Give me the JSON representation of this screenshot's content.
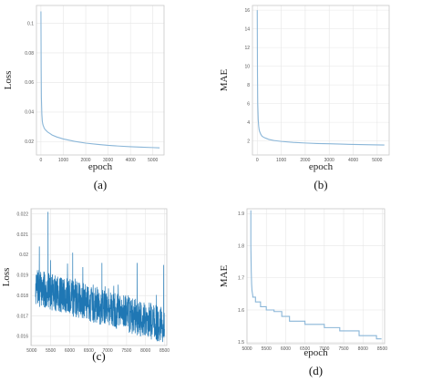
{
  "chart_data": [
    {
      "type": "line",
      "panel": "(a)",
      "title": "",
      "xlabel": "epoch",
      "ylabel": "Loss",
      "xlim": [
        -200,
        5500
      ],
      "ylim": [
        0.011,
        0.112
      ],
      "xticks": [
        "0",
        "1000",
        "2000",
        "3000",
        "4000",
        "5000"
      ],
      "xtick_values": [
        0,
        1000,
        2000,
        3000,
        4000,
        5000
      ],
      "yticks": [
        "0.02",
        "0.04",
        "0.06",
        "0.08",
        "0.1"
      ],
      "ytick_values": [
        0.02,
        0.04,
        0.06,
        0.08,
        0.1
      ],
      "grid": true,
      "color": "#8ab6d8",
      "series": [
        {
          "x": [
            0,
            10,
            20,
            40,
            60,
            80,
            100,
            150,
            200,
            300,
            400,
            500,
            700,
            1000,
            1500,
            2000,
            2500,
            3000,
            3500,
            4000,
            4500,
            5000,
            5300
          ],
          "y": [
            0.108,
            0.07,
            0.05,
            0.039,
            0.034,
            0.032,
            0.031,
            0.029,
            0.028,
            0.0265,
            0.0255,
            0.0245,
            0.0232,
            0.0218,
            0.0202,
            0.019,
            0.0182,
            0.0175,
            0.017,
            0.0166,
            0.0163,
            0.016,
            0.0158
          ]
        }
      ]
    },
    {
      "type": "line",
      "panel": "(b)",
      "title": "",
      "xlabel": "epoch",
      "ylabel": "MAE",
      "xlim": [
        -200,
        5500
      ],
      "ylim": [
        0.5,
        16.5
      ],
      "xticks": [
        "0",
        "1000",
        "2000",
        "3000",
        "4000",
        "5000"
      ],
      "xtick_values": [
        0,
        1000,
        2000,
        3000,
        4000,
        5000
      ],
      "yticks": [
        "2",
        "4",
        "6",
        "8",
        "10",
        "12",
        "14",
        "16"
      ],
      "ytick_values": [
        2,
        4,
        6,
        8,
        10,
        12,
        14,
        16
      ],
      "grid": true,
      "color": "#8ab6d8",
      "series": [
        {
          "x": [
            0,
            10,
            20,
            40,
            60,
            80,
            100,
            150,
            200,
            300,
            400,
            500,
            700,
            1000,
            1500,
            2000,
            2500,
            3000,
            3500,
            4000,
            4500,
            5000,
            5300
          ],
          "y": [
            16.0,
            9.0,
            6.0,
            4.3,
            3.6,
            3.2,
            3.0,
            2.7,
            2.5,
            2.35,
            2.25,
            2.15,
            2.05,
            1.95,
            1.85,
            1.78,
            1.73,
            1.7,
            1.66,
            1.63,
            1.6,
            1.58,
            1.57
          ]
        }
      ]
    },
    {
      "type": "line",
      "panel": "(c)",
      "title": "",
      "xlabel": "",
      "ylabel": "Loss",
      "xlim": [
        4980,
        8560
      ],
      "ylim": [
        0.01555,
        0.02225
      ],
      "xticks": [
        "5000",
        "5500",
        "6000",
        "6500",
        "7000",
        "7500",
        "8000",
        "8500"
      ],
      "xtick_values": [
        5000,
        5500,
        6000,
        6500,
        7000,
        7500,
        8000,
        8500
      ],
      "yticks": [
        "0.016",
        "0.017",
        "0.018",
        "0.019",
        "0.02",
        "0.021",
        "0.022"
      ],
      "ytick_values": [
        0.016,
        0.017,
        0.018,
        0.019,
        0.02,
        0.021,
        0.022
      ],
      "grid": true,
      "color": "#1f77b4",
      "series": [
        {
          "x_start": 5100,
          "x_end": 8500,
          "trend": [
            0.0184,
            0.01655
          ],
          "noise_span": 0.0018,
          "spikes": [
            {
              "x": 5430,
              "y": 0.0221
            },
            {
              "x": 5200,
              "y": 0.0204
            },
            {
              "x": 6080,
              "y": 0.0201
            },
            {
              "x": 6850,
              "y": 0.0196
            },
            {
              "x": 7780,
              "y": 0.0196
            },
            {
              "x": 8480,
              "y": 0.0195
            }
          ]
        }
      ]
    },
    {
      "type": "line",
      "panel": "(d)",
      "title": "",
      "xlabel": "epoch",
      "ylabel": "MAE",
      "xlim": [
        5000,
        8560
      ],
      "ylim": [
        1.495,
        1.915
      ],
      "xticks": [
        "5000",
        "5500",
        "6000",
        "6500",
        "7000",
        "7500",
        "8000",
        "8500"
      ],
      "xtick_values": [
        5000,
        5500,
        6000,
        6500,
        7000,
        7500,
        8000,
        8500
      ],
      "yticks": [
        "1.5",
        "1.6",
        "1.7",
        "1.8",
        "1.9"
      ],
      "ytick_values": [
        1.5,
        1.6,
        1.7,
        1.8,
        1.9
      ],
      "grid": true,
      "color": "#8ab6d8",
      "series": [
        {
          "x": [
            5100,
            5100,
            5110,
            5120,
            5130,
            5150,
            5150,
            5220,
            5220,
            5350,
            5350,
            5500,
            5500,
            5700,
            5700,
            5900,
            5900,
            6100,
            6100,
            6500,
            6500,
            7000,
            7000,
            7400,
            7400,
            7900,
            7900,
            8350,
            8350,
            8480
          ],
          "y": [
            1.91,
            1.8,
            1.72,
            1.68,
            1.66,
            1.645,
            1.64,
            1.64,
            1.625,
            1.625,
            1.61,
            1.61,
            1.6,
            1.6,
            1.595,
            1.595,
            1.58,
            1.58,
            1.565,
            1.565,
            1.555,
            1.555,
            1.545,
            1.545,
            1.535,
            1.535,
            1.52,
            1.52,
            1.51,
            1.51
          ]
        }
      ]
    }
  ],
  "panel_labels": {
    "a": "(a)",
    "b": "(b)",
    "c": "(c)",
    "d": "(d)"
  }
}
